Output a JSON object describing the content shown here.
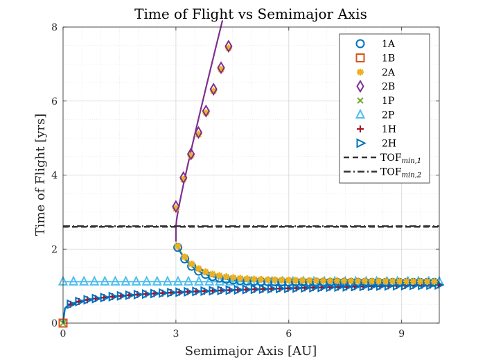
{
  "chart_data": {
    "type": "line",
    "title": "Time of Flight vs Semimajor Axis",
    "xlabel": "Semimajor Axis [AU]",
    "ylabel": "Time of Flight [yrs]",
    "xlim": [
      0,
      10
    ],
    "ylim": [
      0,
      8
    ],
    "xticks": [
      0,
      3,
      6,
      9
    ],
    "xtick_labels": [
      "0",
      "3",
      "6",
      "9"
    ],
    "yticks": [
      0,
      2,
      4,
      6,
      8
    ],
    "ytick_labels": [
      "0",
      "2",
      "4",
      "6",
      "8"
    ],
    "grid": true,
    "minor_grid": true,
    "legend_position": "top-right",
    "tof_min_1": 2.6,
    "tof_min_2": 2.62,
    "series": [
      {
        "name": "1A",
        "marker": "circle",
        "color": "#0072bd",
        "x": [
          3.0,
          3.3,
          3.6,
          4.0,
          4.5,
          5.0,
          6.0,
          7.0,
          8.0,
          9.0,
          10.0
        ],
        "y": [
          2.18,
          1.85,
          1.67,
          1.53,
          1.42,
          1.36,
          1.27,
          1.22,
          1.18,
          1.15,
          1.13
        ]
      },
      {
        "name": "1B",
        "marker": "square",
        "color": "#d95319",
        "x": [
          0
        ],
        "y": [
          0
        ]
      },
      {
        "name": "2A",
        "marker": "star",
        "color": "#edb120",
        "x": [
          3.0,
          3.5,
          4.0,
          5.0,
          6.0,
          7.0,
          8.0,
          9.0,
          10.0
        ],
        "y": [
          2.2,
          1.75,
          1.58,
          1.42,
          1.33,
          1.28,
          1.25,
          1.23,
          1.22
        ]
      },
      {
        "name": "2B",
        "marker": "diamond",
        "color": "#7e2f8e",
        "x": [
          3.0,
          3.2,
          3.4,
          3.6,
          3.8,
          4.0,
          4.2,
          4.4
        ],
        "y": [
          3.15,
          3.93,
          4.57,
          5.15,
          5.73,
          6.32,
          6.9,
          7.48
        ]
      },
      {
        "name": "1P",
        "marker": "x",
        "color": "#77ac30",
        "x": [
          0
        ],
        "y": [
          0
        ]
      },
      {
        "name": "2P",
        "marker": "triangle-up",
        "color": "#4dbeee",
        "x": [
          0,
          2,
          4,
          6,
          8,
          10
        ],
        "y": [
          1.12,
          1.12,
          1.12,
          1.12,
          1.12,
          1.12
        ]
      },
      {
        "name": "1H",
        "marker": "plus",
        "color": "#a2142f",
        "x": [
          0,
          0.5,
          1,
          2,
          3,
          4,
          5,
          6,
          7,
          8,
          9,
          10
        ],
        "y": [
          0,
          0.49,
          0.6,
          0.77,
          0.86,
          0.9,
          0.93,
          0.95,
          0.97,
          0.99,
          1.0,
          1.02
        ]
      },
      {
        "name": "2H",
        "marker": "triangle-right",
        "color": "#0072bd",
        "x": [
          0,
          0.5,
          1,
          2,
          3,
          4,
          5,
          6,
          7,
          8,
          9,
          10
        ],
        "y": [
          0,
          0.49,
          0.6,
          0.77,
          0.86,
          0.9,
          0.93,
          0.95,
          0.97,
          0.99,
          1.0,
          1.02
        ]
      }
    ],
    "reference_lines": [
      {
        "name": "TOF_min,1",
        "label_main": "TOF",
        "label_sub": "min,1",
        "style": "dashed",
        "color": "#333333",
        "y": 2.6
      },
      {
        "name": "TOF_min,2",
        "label_main": "TOF",
        "label_sub": "min,2",
        "style": "dashdot",
        "color": "#333333",
        "y": 2.62
      }
    ]
  }
}
